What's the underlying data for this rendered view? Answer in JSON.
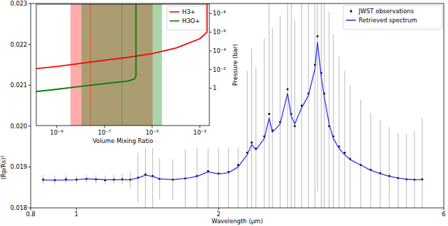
{
  "chart_data": [
    {
      "type": "scatter",
      "x_label": "Wavelength (μm)",
      "y_label": "(Rp/Rs)²",
      "log": "x",
      "legend": "upper right",
      "xlim": [
        0.8,
        6
      ],
      "xticks": [
        0.8,
        1,
        2,
        6
      ],
      "ylim": [
        0.018,
        0.023
      ],
      "yticks": [
        0.018,
        0.019,
        {
          "value": 0.02,
          "label": "0.020"
        },
        0.021,
        0.022,
        0.023
      ],
      "x": [
        0.85,
        0.9,
        0.95,
        1.0,
        1.05,
        1.1,
        1.15,
        1.2,
        1.25,
        1.3,
        1.35,
        1.4,
        1.45,
        1.5,
        1.6,
        1.7,
        1.8,
        1.9,
        2.0,
        2.1,
        2.2,
        2.3,
        2.35,
        2.4,
        2.5,
        2.56,
        2.6,
        2.7,
        2.8,
        2.85,
        2.9,
        3.0,
        3.1,
        3.2,
        3.24,
        3.3,
        3.35,
        3.43,
        3.5,
        3.6,
        3.7,
        3.8,
        4.0,
        4.2,
        4.4,
        4.6,
        4.8,
        5.0,
        5.2,
        5.4
      ],
      "series": [
        {
          "name": "JWST observations",
          "type": "scatter",
          "marker": "dot",
          "color": "#000000",
          "values": [
            0.01869,
            0.01868,
            0.0187,
            0.01869,
            0.01871,
            0.0187,
            0.01868,
            0.01869,
            0.0187,
            0.01869,
            0.01874,
            0.01882,
            0.01878,
            0.01871,
            0.01869,
            0.01872,
            0.01878,
            0.0189,
            0.01884,
            0.01888,
            0.01905,
            0.01935,
            0.0196,
            0.01945,
            0.01975,
            0.0203,
            0.0199,
            0.0201,
            0.0209,
            0.0203,
            0.02,
            0.0205,
            0.0208,
            0.0215,
            0.0222,
            0.0213,
            0.0208,
            0.02,
            0.01975,
            0.0195,
            0.01935,
            0.0192,
            0.01905,
            0.01893,
            0.01885,
            0.01878,
            0.01873,
            0.0187,
            0.01869,
            0.0187
          ],
          "errors": [
            0.00012,
            0.00011,
            0.0001,
            0.0001,
            0.0001,
            0.0001,
            0.00011,
            0.00012,
            0.00013,
            0.0002,
            0.0006,
            0.0012,
            0.0009,
            0.0005,
            0.0005,
            0.0007,
            0.001,
            0.0015,
            0.0012,
            0.0011,
            0.0015,
            0.002,
            0.0023,
            0.002,
            0.0024,
            0.0028,
            0.0025,
            0.0026,
            0.003,
            0.0028,
            0.0026,
            0.003,
            0.0032,
            0.0035,
            0.0038,
            0.0035,
            0.0032,
            0.0028,
            0.0025,
            0.0022,
            0.002,
            0.0018,
            0.0016,
            0.0014,
            0.0013,
            0.0012,
            0.0011,
            0.0011,
            0.0012,
            0.0015
          ]
        },
        {
          "name": "Retrieved spectrum",
          "type": "line",
          "color": "#2f2ff0",
          "values": [
            0.01868,
            0.01868,
            0.01868,
            0.01869,
            0.01871,
            0.0187,
            0.01869,
            0.01869,
            0.01869,
            0.01869,
            0.01873,
            0.0188,
            0.01877,
            0.01871,
            0.01869,
            0.01872,
            0.01877,
            0.01888,
            0.01883,
            0.01886,
            0.019,
            0.0193,
            0.01955,
            0.01942,
            0.0197,
            0.0202,
            0.01985,
            0.02005,
            0.0208,
            0.02025,
            0.02005,
            0.02045,
            0.02075,
            0.0214,
            0.02205,
            0.0212,
            0.0207,
            0.02005,
            0.0197,
            0.01945,
            0.0193,
            0.01918,
            0.01905,
            0.01892,
            0.01884,
            0.01877,
            0.01873,
            0.0187,
            0.01869,
            0.01869
          ]
        }
      ]
    },
    {
      "type": "line",
      "x_label": "Volume Mixing Ratio",
      "y_label": "Pressure (bar)",
      "log": true,
      "legend": "upper right",
      "xlim": [
        1.4e-10,
        0.0025
      ],
      "xticks": [
        {
          "value": 1e-09,
          "label": "10⁻⁹"
        },
        {
          "value": 1e-07,
          "label": "10⁻⁷"
        },
        {
          "value": 1e-05,
          "label": "10⁻⁵"
        },
        {
          "value": 0.001,
          "label": "10⁻³"
        }
      ],
      "ylim": [
        10000,
        1e-09
      ],
      "yticks": [
        {
          "value": 1e-08,
          "label": "10⁻⁸"
        },
        {
          "value": 1e-06,
          "label": "10⁻⁶"
        },
        {
          "value": 0.0001,
          "label": "10⁻⁴"
        },
        {
          "value": 0.01,
          "label": "10⁻²"
        },
        1
      ],
      "series": [
        {
          "name": "H3+",
          "color": "#ff0000",
          "x": [
            1e-10,
            1e-09,
            1e-08,
            1e-07,
            1e-06,
            1e-05,
            0.0001,
            0.001,
            0.002,
            0.002
          ],
          "values": [
            0.0089,
            0.0047,
            0.0022,
            0.001,
            0.00048,
            0.0002,
            5e-05,
            5e-06,
            1e-06,
            1e-09
          ],
          "range": [
            3.8e-09,
            1.05e-05
          ],
          "median": 2.6e-08
        },
        {
          "name": "H3O+",
          "color": "#008000",
          "x": [
            1e-10,
            1e-09,
            1e-08,
            1e-07,
            1e-06,
            1.8e-06,
            2.1e-06,
            2.1e-06
          ],
          "values": [
            2.5,
            1.3,
            0.65,
            0.32,
            0.17,
            0.1,
            0.05,
            1e-09
          ],
          "range": [
            1.1e-08,
            2.6e-05
          ],
          "median": 5.5e-07
        }
      ]
    }
  ]
}
